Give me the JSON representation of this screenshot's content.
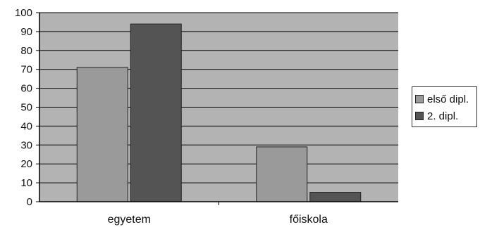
{
  "chart_data": {
    "type": "bar",
    "categories": [
      "egyetem",
      "főiskola"
    ],
    "series": [
      {
        "name": "első dipl.",
        "values": [
          71,
          29
        ]
      },
      {
        "name": "2. dipl.",
        "values": [
          94,
          5
        ]
      }
    ],
    "ylim": [
      0,
      100
    ],
    "yticks": [
      0,
      10,
      20,
      30,
      40,
      50,
      60,
      70,
      80,
      90,
      100
    ],
    "grid": true,
    "legend_position": "right",
    "colors": {
      "plot_background": "#b3b3b3",
      "series_1": "#9a9a9a",
      "series_2": "#545454",
      "gridline": "#000000"
    }
  }
}
